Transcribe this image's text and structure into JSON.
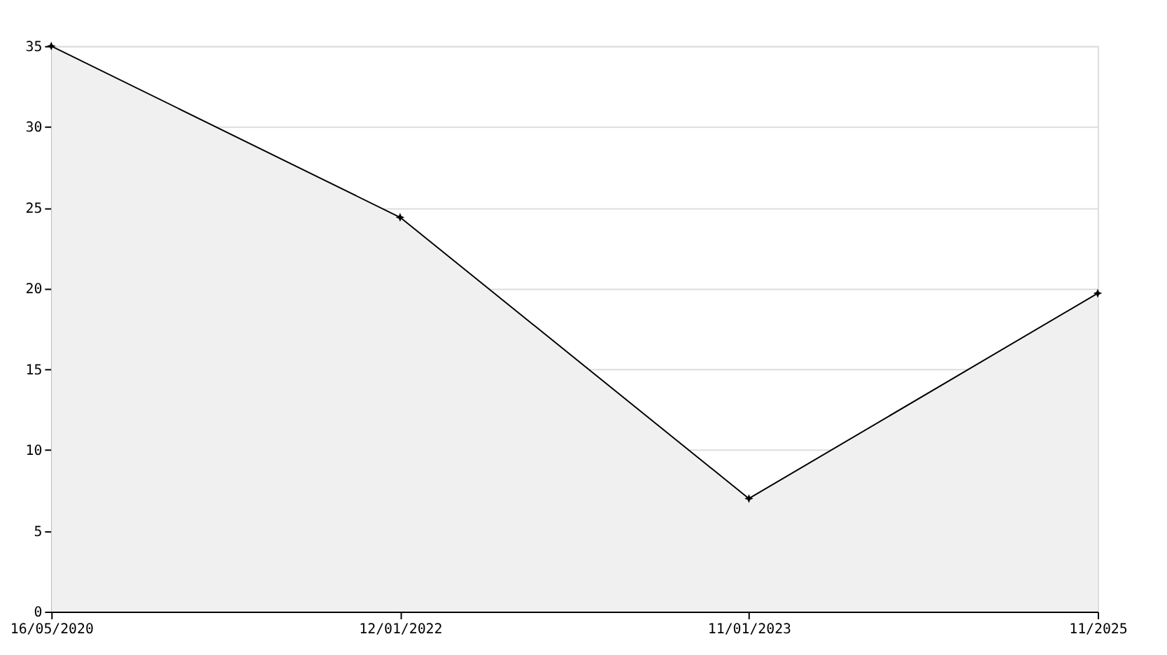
{
  "chart_data": {
    "type": "area",
    "categories": [
      "16/05/2020",
      "12/01/2022",
      "11/01/2023",
      "11/2025"
    ],
    "series": [
      {
        "color": "#000000",
        "values": [
          35,
          24.4,
          7.0,
          19.7
        ]
      }
    ],
    "ylim": [
      0,
      35
    ],
    "yticks": [
      0,
      5,
      10,
      15,
      20,
      25,
      30,
      35
    ],
    "grid": "y",
    "marker": "star",
    "line_style": "solid"
  }
}
